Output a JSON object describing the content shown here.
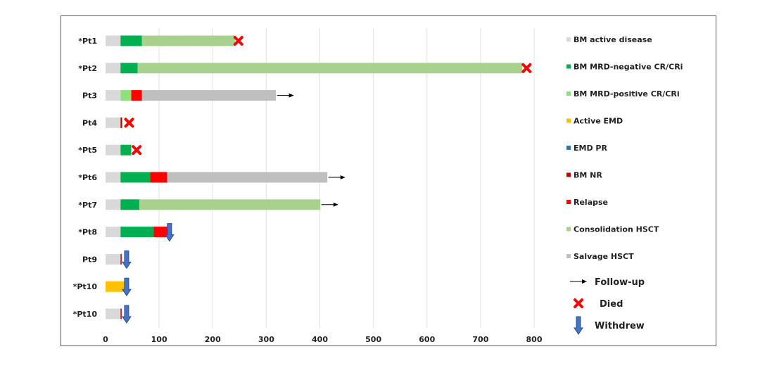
{
  "chart_data": {
    "type": "bar",
    "orientation": "horizontal-stacked-timeline",
    "xlim": [
      0,
      800
    ],
    "xticks": [
      0,
      100,
      200,
      300,
      400,
      500,
      600,
      700,
      800
    ],
    "grid": "vertical",
    "legend_position": "right",
    "colors": {
      "bm_active": "#d9d9d9",
      "mrd_neg": "#00b050",
      "mrd_pos": "#8ee07a",
      "active_emd": "#ffc000",
      "emd_pr": "#2e75b6",
      "bm_nr": "#c00000",
      "relapse": "#ff0000",
      "consol": "#a9d18e",
      "salvage": "#bfbfbf"
    },
    "legend": [
      {
        "key": "bm_active",
        "label": "BM active disease"
      },
      {
        "key": "mrd_neg",
        "label": "BM MRD-negative CR/CRi"
      },
      {
        "key": "mrd_pos",
        "label": "BM MRD-positive CR/CRi"
      },
      {
        "key": "active_emd",
        "label": "Active EMD"
      },
      {
        "key": "emd_pr",
        "label": "EMD PR"
      },
      {
        "key": "bm_nr",
        "label": "BM NR"
      },
      {
        "key": "relapse",
        "label": "Relapse"
      },
      {
        "key": "consol",
        "label": "Consolidation HSCT"
      },
      {
        "key": "salvage",
        "label": "Salvage HSCT"
      }
    ],
    "marker_legend": [
      {
        "key": "followup",
        "label": "Follow-up"
      },
      {
        "key": "died",
        "label": "Died"
      },
      {
        "key": "withdrew",
        "label": "Withdrew"
      }
    ],
    "patients": [
      {
        "label": "*Pt1",
        "segments": [
          {
            "key": "bm_active",
            "start": 0,
            "end": 28
          },
          {
            "key": "mrd_neg",
            "start": 28,
            "end": 68
          },
          {
            "key": "consol",
            "start": 68,
            "end": 242
          }
        ],
        "marker": "died",
        "marker_at": 248
      },
      {
        "label": "*Pt2",
        "segments": [
          {
            "key": "bm_active",
            "start": 0,
            "end": 28
          },
          {
            "key": "mrd_neg",
            "start": 28,
            "end": 60
          },
          {
            "key": "consol",
            "start": 60,
            "end": 778
          }
        ],
        "marker": "died",
        "marker_at": 786
      },
      {
        "label": "Pt3",
        "segments": [
          {
            "key": "bm_active",
            "start": 0,
            "end": 28
          },
          {
            "key": "mrd_pos",
            "start": 28,
            "end": 48
          },
          {
            "key": "relapse",
            "start": 48,
            "end": 68
          },
          {
            "key": "salvage",
            "start": 68,
            "end": 318
          }
        ],
        "marker": "followup",
        "marker_at": 320
      },
      {
        "label": "Pt4",
        "segments": [
          {
            "key": "bm_active",
            "start": 0,
            "end": 28
          },
          {
            "key": "bm_nr",
            "start": 28,
            "end": 31
          }
        ],
        "marker": "died",
        "marker_at": 44
      },
      {
        "label": "*Pt5",
        "segments": [
          {
            "key": "bm_active",
            "start": 0,
            "end": 28
          },
          {
            "key": "mrd_neg",
            "start": 28,
            "end": 48
          }
        ],
        "marker": "died",
        "marker_at": 58
      },
      {
        "label": "*Pt6",
        "segments": [
          {
            "key": "bm_active",
            "start": 0,
            "end": 28
          },
          {
            "key": "mrd_neg",
            "start": 28,
            "end": 83
          },
          {
            "key": "relapse",
            "start": 83,
            "end": 115
          },
          {
            "key": "salvage",
            "start": 115,
            "end": 414
          }
        ],
        "marker": "followup",
        "marker_at": 416
      },
      {
        "label": "*Pt7",
        "segments": [
          {
            "key": "bm_active",
            "start": 0,
            "end": 28
          },
          {
            "key": "mrd_neg",
            "start": 28,
            "end": 63
          },
          {
            "key": "consol",
            "start": 63,
            "end": 401
          }
        ],
        "marker": "followup",
        "marker_at": 403
      },
      {
        "label": "*Pt8",
        "segments": [
          {
            "key": "bm_active",
            "start": 0,
            "end": 28
          },
          {
            "key": "mrd_neg",
            "start": 28,
            "end": 90
          },
          {
            "key": "relapse",
            "start": 90,
            "end": 115
          }
        ],
        "marker": "withdrew",
        "marker_at": 118
      },
      {
        "label": "Pt9",
        "segments": [
          {
            "key": "bm_active",
            "start": 0,
            "end": 28
          },
          {
            "key": "bm_nr",
            "start": 28,
            "end": 30
          }
        ],
        "marker": "withdrew",
        "marker_at": 38
      },
      {
        "label": "*Pt10",
        "segments": [
          {
            "key": "active_emd",
            "start": 0,
            "end": 35
          },
          {
            "key": "emd_pr",
            "start": 35,
            "end": 36
          }
        ],
        "marker": "withdrew",
        "marker_at": 38
      },
      {
        "label": "*Pt10",
        "segments": [
          {
            "key": "bm_active",
            "start": 0,
            "end": 28
          },
          {
            "key": "bm_nr",
            "start": 28,
            "end": 30
          }
        ],
        "marker": "withdrew",
        "marker_at": 38
      }
    ]
  }
}
